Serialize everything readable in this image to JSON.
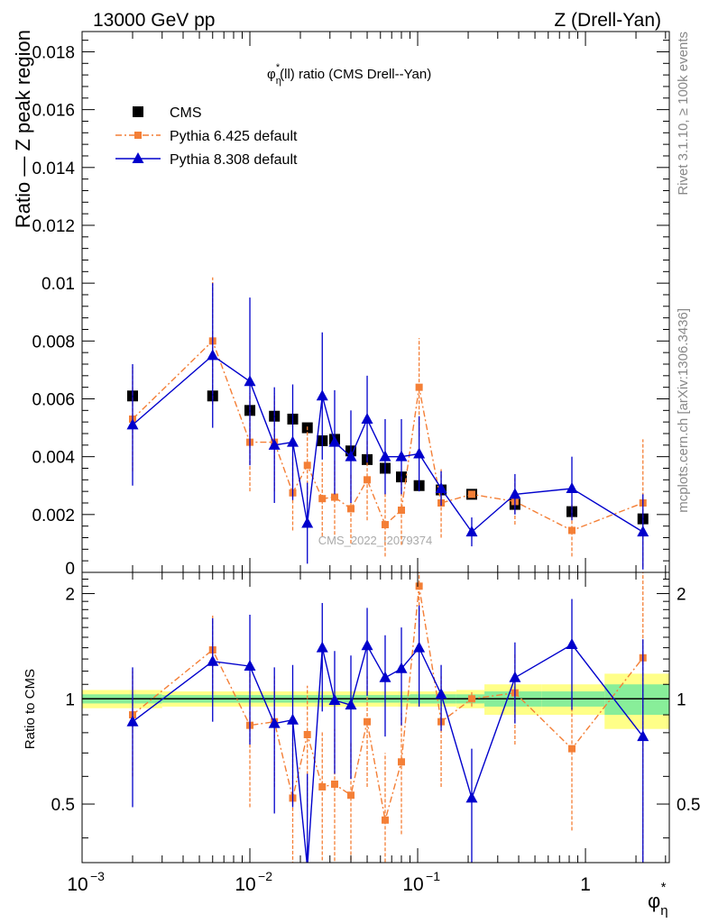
{
  "header": {
    "left": "13000 GeV pp",
    "right": "Z (Drell-Yan)"
  },
  "side_text": {
    "rivet": "Rivet 3.1.10, ≥ 100k events",
    "mcplots": "mcplots.cern.ch [arXiv:1306.3436]"
  },
  "plot_title": {
    "phi": "φ",
    "sub": "η",
    "sup": "*",
    "rest": "(ll) ratio (CMS Drell--Yan)"
  },
  "watermark": "CMS_2022_I2079374",
  "colors": {
    "cms": "#000000",
    "py6": "#f47f36",
    "py8": "#0000cc",
    "band_outer": "#ffff88",
    "band_inner": "#88ee99"
  },
  "chart_data": [
    {
      "type": "scatter",
      "panel": "main",
      "ylabel": "Ratio — Z peak region",
      "xscale": "log",
      "xlim": [
        0.001,
        3.16
      ],
      "ylim": [
        0,
        0.0187
      ],
      "yticks": [
        {
          "v": 0.002,
          "label": "0.002"
        },
        {
          "v": 0.004,
          "label": "0.004"
        },
        {
          "v": 0.006,
          "label": "0.006"
        },
        {
          "v": 0.008,
          "label": "0.008"
        },
        {
          "v": 0.01,
          "label": "0.01"
        },
        {
          "v": 0.012,
          "label": "0.012"
        },
        {
          "v": 0.014,
          "label": "0.014"
        },
        {
          "v": 0.016,
          "label": "0.016"
        },
        {
          "v": 0.018,
          "label": "0.018"
        }
      ],
      "legend_position": "top-left",
      "series": [
        {
          "name": "CMS",
          "marker": "square",
          "points": [
            {
              "x": 0.002,
              "y": 0.0061,
              "err": 0
            },
            {
              "x": 0.006,
              "y": 0.0061,
              "err": 0
            },
            {
              "x": 0.01,
              "y": 0.0056,
              "err": 0
            },
            {
              "x": 0.014,
              "y": 0.0054,
              "err": 0
            },
            {
              "x": 0.018,
              "y": 0.0053,
              "err": 0
            },
            {
              "x": 0.022,
              "y": 0.005,
              "err": 0
            },
            {
              "x": 0.027,
              "y": 0.00455,
              "err": 0
            },
            {
              "x": 0.032,
              "y": 0.0046,
              "err": 0
            },
            {
              "x": 0.04,
              "y": 0.0042,
              "err": 0
            },
            {
              "x": 0.05,
              "y": 0.0039,
              "err": 0
            },
            {
              "x": 0.064,
              "y": 0.0036,
              "err": 0
            },
            {
              "x": 0.08,
              "y": 0.0033,
              "err": 0
            },
            {
              "x": 0.102,
              "y": 0.003,
              "err": 0
            },
            {
              "x": 0.138,
              "y": 0.00285,
              "err": 0
            },
            {
              "x": 0.21,
              "y": 0.0027,
              "err": 0
            },
            {
              "x": 0.38,
              "y": 0.00235,
              "err": 0
            },
            {
              "x": 0.83,
              "y": 0.0021,
              "err": 0
            },
            {
              "x": 2.2,
              "y": 0.00185,
              "err": 0
            }
          ]
        },
        {
          "name": "Pythia 6.425 default",
          "marker": "small-square",
          "dash": true,
          "points": [
            {
              "x": 0.002,
              "y": 0.0053,
              "err": 0.0018
            },
            {
              "x": 0.006,
              "y": 0.008,
              "err": 0.0022
            },
            {
              "x": 0.01,
              "y": 0.0045,
              "err": 0.0017
            },
            {
              "x": 0.014,
              "y": 0.0045,
              "err": 0.0017
            },
            {
              "x": 0.018,
              "y": 0.00275,
              "err": 0.0013
            },
            {
              "x": 0.022,
              "y": 0.0037,
              "err": 0.0014
            },
            {
              "x": 0.027,
              "y": 0.00255,
              "err": 0.0013
            },
            {
              "x": 0.032,
              "y": 0.0026,
              "err": 0.0013
            },
            {
              "x": 0.04,
              "y": 0.0022,
              "err": 0.0012
            },
            {
              "x": 0.05,
              "y": 0.0032,
              "err": 0.0014
            },
            {
              "x": 0.064,
              "y": 0.00165,
              "err": 0.0011
            },
            {
              "x": 0.08,
              "y": 0.00215,
              "err": 0.0012
            },
            {
              "x": 0.102,
              "y": 0.0064,
              "err": 0.0017
            },
            {
              "x": 0.138,
              "y": 0.0024,
              "err": 0.0012
            },
            {
              "x": 0.21,
              "y": 0.0027,
              "err": 0.0001
            },
            {
              "x": 0.38,
              "y": 0.00245,
              "err": 0.0008
            },
            {
              "x": 0.83,
              "y": 0.00145,
              "err": 0.0009
            },
            {
              "x": 2.2,
              "y": 0.0024,
              "err": 0.0022
            }
          ]
        },
        {
          "name": "Pythia 8.308 default",
          "marker": "triangle",
          "points": [
            {
              "x": 0.002,
              "y": 0.0051,
              "err": 0.0021
            },
            {
              "x": 0.006,
              "y": 0.0075,
              "err": 0.0025
            },
            {
              "x": 0.01,
              "y": 0.0066,
              "err": 0.0029
            },
            {
              "x": 0.014,
              "y": 0.0044,
              "err": 0.002
            },
            {
              "x": 0.018,
              "y": 0.0045,
              "err": 0.002
            },
            {
              "x": 0.022,
              "y": 0.0017,
              "err": 0.0014
            },
            {
              "x": 0.027,
              "y": 0.0061,
              "err": 0.0022
            },
            {
              "x": 0.032,
              "y": 0.0045,
              "err": 0.0018
            },
            {
              "x": 0.04,
              "y": 0.004,
              "err": 0.0016
            },
            {
              "x": 0.05,
              "y": 0.0053,
              "err": 0.0015
            },
            {
              "x": 0.064,
              "y": 0.004,
              "err": 0.0013
            },
            {
              "x": 0.08,
              "y": 0.004,
              "err": 0.0013
            },
            {
              "x": 0.102,
              "y": 0.0041,
              "err": 0.0013
            },
            {
              "x": 0.138,
              "y": 0.0029,
              "err": 0.0006
            },
            {
              "x": 0.21,
              "y": 0.0014,
              "err": 0.0005
            },
            {
              "x": 0.38,
              "y": 0.0027,
              "err": 0.0007
            },
            {
              "x": 0.83,
              "y": 0.0029,
              "err": 0.0011
            },
            {
              "x": 2.2,
              "y": 0.0014,
              "err": 0.0013
            }
          ]
        }
      ]
    },
    {
      "type": "scatter",
      "panel": "ratio",
      "ylabel": "Ratio to CMS",
      "xlabel": "φ",
      "xlabel_sub": "η",
      "xlabel_sup": "*",
      "xscale": "log",
      "xlim": [
        0.001,
        3.16
      ],
      "ylim": [
        0.34,
        2.3
      ],
      "ymajor": [
        {
          "v": 0.5,
          "label": "0.5"
        },
        {
          "v": 1,
          "label": "1"
        },
        {
          "v": 2,
          "label": "2"
        }
      ],
      "xticks": [
        {
          "v": 0.001,
          "base": "10",
          "exp": "−3"
        },
        {
          "v": 0.01,
          "base": "10",
          "exp": "−2"
        },
        {
          "v": 0.1,
          "base": "10",
          "exp": "−1"
        },
        {
          "v": 1,
          "base": "1",
          "exp": ""
        }
      ],
      "band": [
        {
          "x0": 0.001,
          "x1": 0.003,
          "inner": 0.03,
          "outer": 0.06
        },
        {
          "x0": 0.003,
          "x1": 0.02,
          "inner": 0.025,
          "outer": 0.05
        },
        {
          "x0": 0.02,
          "x1": 0.09,
          "inner": 0.025,
          "outer": 0.05
        },
        {
          "x0": 0.09,
          "x1": 0.17,
          "inner": 0.03,
          "outer": 0.05
        },
        {
          "x0": 0.17,
          "x1": 0.25,
          "inner": 0.03,
          "outer": 0.06
        },
        {
          "x0": 0.25,
          "x1": 0.55,
          "inner": 0.05,
          "outer": 0.1
        },
        {
          "x0": 0.55,
          "x1": 1.3,
          "inner": 0.05,
          "outer": 0.1
        },
        {
          "x0": 1.3,
          "x1": 3.16,
          "inner": 0.1,
          "outer": 0.18
        }
      ],
      "series": [
        {
          "name": "Pythia 6.425 default",
          "points": [
            {
              "x": 0.002,
              "y": 0.9,
              "err": 0.3
            },
            {
              "x": 0.006,
              "y": 1.38,
              "err": 0.35
            },
            {
              "x": 0.01,
              "y": 0.84,
              "err": 0.35
            },
            {
              "x": 0.014,
              "y": 0.86,
              "err": 0.3
            },
            {
              "x": 0.018,
              "y": 0.52,
              "err": 0.25
            },
            {
              "x": 0.022,
              "y": 0.79,
              "err": 0.3
            },
            {
              "x": 0.027,
              "y": 0.56,
              "err": 0.25
            },
            {
              "x": 0.032,
              "y": 0.57,
              "err": 0.25
            },
            {
              "x": 0.04,
              "y": 0.53,
              "err": 0.22
            },
            {
              "x": 0.05,
              "y": 0.86,
              "err": 0.3
            },
            {
              "x": 0.064,
              "y": 0.45,
              "err": 0.25
            },
            {
              "x": 0.08,
              "y": 0.66,
              "err": 0.25
            },
            {
              "x": 0.102,
              "y": 2.1,
              "err": 0.5
            },
            {
              "x": 0.138,
              "y": 0.86,
              "err": 0.3
            },
            {
              "x": 0.21,
              "y": 1.0,
              "err": 0.05
            },
            {
              "x": 0.38,
              "y": 1.04,
              "err": 0.3
            },
            {
              "x": 0.83,
              "y": 0.72,
              "err": 0.3
            },
            {
              "x": 2.2,
              "y": 1.31,
              "err": 1.1
            }
          ]
        },
        {
          "name": "Pythia 8.308 default",
          "points": [
            {
              "x": 0.002,
              "y": 0.86,
              "err": 0.37
            },
            {
              "x": 0.006,
              "y": 1.28,
              "err": 0.42
            },
            {
              "x": 0.01,
              "y": 1.24,
              "err": 0.5
            },
            {
              "x": 0.014,
              "y": 0.85,
              "err": 0.38
            },
            {
              "x": 0.018,
              "y": 0.87,
              "err": 0.38
            },
            {
              "x": 0.022,
              "y": 0.33,
              "err": 0.28
            },
            {
              "x": 0.027,
              "y": 1.4,
              "err": 0.48
            },
            {
              "x": 0.032,
              "y": 0.99,
              "err": 0.38
            },
            {
              "x": 0.04,
              "y": 0.96,
              "err": 0.37
            },
            {
              "x": 0.05,
              "y": 1.42,
              "err": 0.4
            },
            {
              "x": 0.064,
              "y": 1.15,
              "err": 0.37
            },
            {
              "x": 0.08,
              "y": 1.22,
              "err": 0.38
            },
            {
              "x": 0.102,
              "y": 1.4,
              "err": 0.45
            },
            {
              "x": 0.138,
              "y": 1.03,
              "err": 0.22
            },
            {
              "x": 0.21,
              "y": 0.52,
              "err": 0.2
            },
            {
              "x": 0.38,
              "y": 1.15,
              "err": 0.3
            },
            {
              "x": 0.83,
              "y": 1.43,
              "err": 0.5
            },
            {
              "x": 2.2,
              "y": 0.78,
              "err": 0.7
            }
          ]
        }
      ]
    }
  ]
}
